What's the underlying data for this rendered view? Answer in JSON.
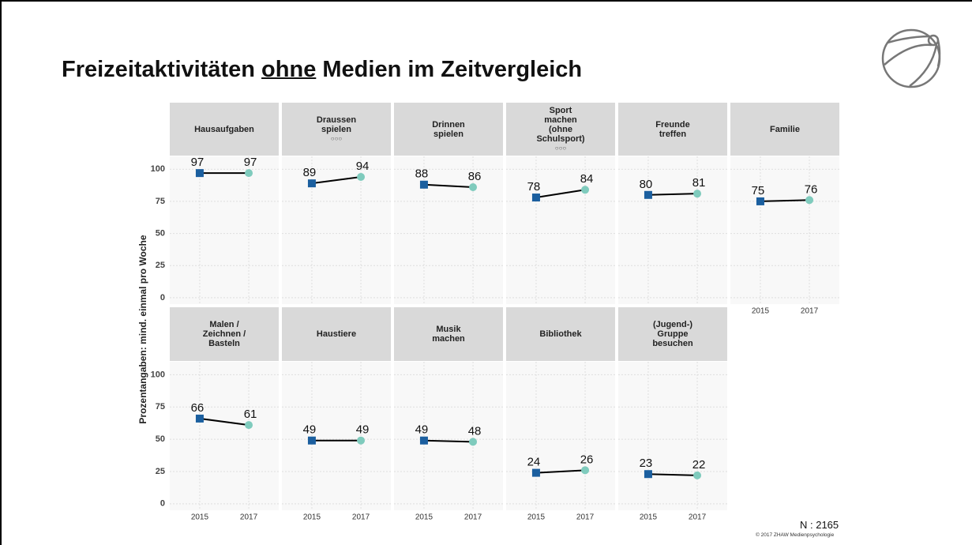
{
  "title": {
    "before": "Freizeitaktivitäten",
    "emphasis": "ohne",
    "after": "Medien im Zeitvergleich"
  },
  "y_label": "Prozentangaben: mind. einmal pro Woche",
  "n_label": "N : 2165",
  "copyright": "© 2017 ZHAW Medienpsychologie",
  "chart_data": [
    {
      "type": "line",
      "title": "Hausaufgaben",
      "categories": [
        "2015",
        "2017"
      ],
      "values": [
        97,
        97
      ],
      "colors": [
        "#1b5f9f",
        "#7fcbbd"
      ],
      "ylim": [
        -5,
        110
      ],
      "yticks": [
        0,
        25,
        50,
        75,
        100
      ],
      "grid": true
    },
    {
      "type": "line",
      "title": "Draussen\nspielen",
      "subtitle": "○○○",
      "categories": [
        "2015",
        "2017"
      ],
      "values": [
        89,
        94
      ],
      "colors": [
        "#1b5f9f",
        "#7fcbbd"
      ],
      "ylim": [
        -5,
        110
      ],
      "yticks": [
        0,
        25,
        50,
        75,
        100
      ],
      "grid": true
    },
    {
      "type": "line",
      "title": "Drinnen\nspielen",
      "categories": [
        "2015",
        "2017"
      ],
      "values": [
        88,
        86
      ],
      "colors": [
        "#1b5f9f",
        "#7fcbbd"
      ],
      "ylim": [
        -5,
        110
      ],
      "yticks": [
        0,
        25,
        50,
        75,
        100
      ],
      "grid": true
    },
    {
      "type": "line",
      "title": "Sport\nmachen\n(ohne\nSchulsport)",
      "subtitle": "○○○",
      "categories": [
        "2015",
        "2017"
      ],
      "values": [
        78,
        84
      ],
      "colors": [
        "#1b5f9f",
        "#7fcbbd"
      ],
      "ylim": [
        -5,
        110
      ],
      "yticks": [
        0,
        25,
        50,
        75,
        100
      ],
      "grid": true
    },
    {
      "type": "line",
      "title": "Freunde\ntreffen",
      "categories": [
        "2015",
        "2017"
      ],
      "values": [
        80,
        81
      ],
      "colors": [
        "#1b5f9f",
        "#7fcbbd"
      ],
      "ylim": [
        -5,
        110
      ],
      "yticks": [
        0,
        25,
        50,
        75,
        100
      ],
      "grid": true
    },
    {
      "type": "line",
      "title": "Familie",
      "categories": [
        "2015",
        "2017"
      ],
      "values": [
        75,
        76
      ],
      "colors": [
        "#1b5f9f",
        "#7fcbbd"
      ],
      "ylim": [
        -5,
        110
      ],
      "yticks": [
        0,
        25,
        50,
        75,
        100
      ],
      "grid": true
    },
    {
      "type": "line",
      "title": "Malen /\nZeichnen /\nBasteln",
      "categories": [
        "2015",
        "2017"
      ],
      "values": [
        66,
        61
      ],
      "colors": [
        "#1b5f9f",
        "#7fcbbd"
      ],
      "ylim": [
        -5,
        110
      ],
      "yticks": [
        0,
        25,
        50,
        75,
        100
      ],
      "grid": true
    },
    {
      "type": "line",
      "title": "Haustiere",
      "categories": [
        "2015",
        "2017"
      ],
      "values": [
        49,
        49
      ],
      "colors": [
        "#1b5f9f",
        "#7fcbbd"
      ],
      "ylim": [
        -5,
        110
      ],
      "yticks": [
        0,
        25,
        50,
        75,
        100
      ],
      "grid": true
    },
    {
      "type": "line",
      "title": "Musik\nmachen",
      "categories": [
        "2015",
        "2017"
      ],
      "values": [
        49,
        48
      ],
      "colors": [
        "#1b5f9f",
        "#7fcbbd"
      ],
      "ylim": [
        -5,
        110
      ],
      "yticks": [
        0,
        25,
        50,
        75,
        100
      ],
      "grid": true
    },
    {
      "type": "line",
      "title": "Bibliothek",
      "categories": [
        "2015",
        "2017"
      ],
      "values": [
        24,
        26
      ],
      "colors": [
        "#1b5f9f",
        "#7fcbbd"
      ],
      "ylim": [
        -5,
        110
      ],
      "yticks": [
        0,
        25,
        50,
        75,
        100
      ],
      "grid": true
    },
    {
      "type": "line",
      "title": "(Jugend-)\nGruppe\nbesuchen",
      "categories": [
        "2015",
        "2017"
      ],
      "values": [
        23,
        22
      ],
      "colors": [
        "#1b5f9f",
        "#7fcbbd"
      ],
      "ylim": [
        -5,
        110
      ],
      "yticks": [
        0,
        25,
        50,
        75,
        100
      ],
      "grid": true
    }
  ]
}
